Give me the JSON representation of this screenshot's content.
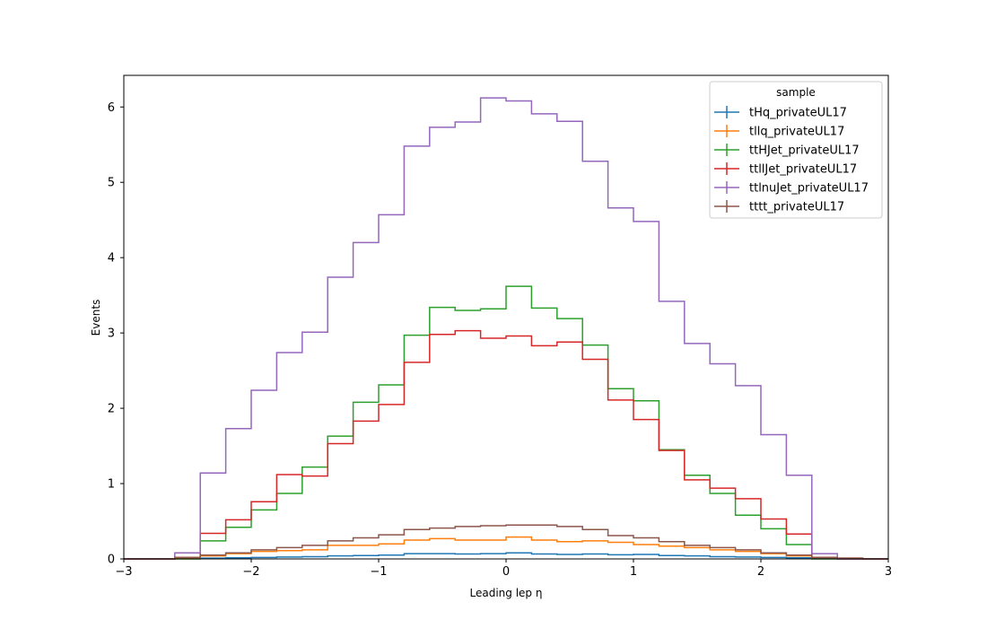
{
  "chart_data": {
    "type": "histogram-step",
    "title": "",
    "xlabel": "Leading lep η",
    "ylabel": "Events",
    "xlim": [
      -3,
      3
    ],
    "ylim": [
      0,
      6.42
    ],
    "xticks": [
      -3,
      -2,
      -1,
      0,
      1,
      2,
      3
    ],
    "xtick_labels": [
      "−3",
      "−2",
      "−1",
      "0",
      "1",
      "2",
      "3"
    ],
    "yticks": [
      0,
      1,
      2,
      3,
      4,
      5,
      6
    ],
    "ytick_labels": [
      "0",
      "1",
      "2",
      "3",
      "4",
      "5",
      "6"
    ],
    "grid": false,
    "legend_placement": "top-right",
    "legend_title": "sample",
    "bin_edges": [
      -3.0,
      -2.8,
      -2.6,
      -2.4,
      -2.2,
      -2.0,
      -1.8,
      -1.6,
      -1.4,
      -1.2,
      -1.0,
      -0.8,
      -0.6,
      -0.4,
      -0.2,
      0.0,
      0.2,
      0.4,
      0.6,
      0.8,
      1.0,
      1.2,
      1.4,
      1.6,
      1.8,
      2.0,
      2.2,
      2.4,
      2.6,
      2.8,
      3.0
    ],
    "series": [
      {
        "name": "tHq_privateUL17",
        "color": "#1f77b4",
        "values": [
          0,
          0,
          0.004,
          0.01,
          0.015,
          0.02,
          0.025,
          0.03,
          0.04,
          0.045,
          0.05,
          0.07,
          0.07,
          0.065,
          0.07,
          0.08,
          0.065,
          0.06,
          0.065,
          0.055,
          0.06,
          0.045,
          0.04,
          0.03,
          0.025,
          0.02,
          0.015,
          0.01,
          0.004,
          0
        ]
      },
      {
        "name": "tllq_privateUL17",
        "color": "#ff7f0e",
        "values": [
          0,
          0,
          0.01,
          0.04,
          0.07,
          0.1,
          0.11,
          0.12,
          0.18,
          0.18,
          0.2,
          0.25,
          0.27,
          0.25,
          0.25,
          0.29,
          0.25,
          0.23,
          0.24,
          0.22,
          0.19,
          0.17,
          0.15,
          0.12,
          0.1,
          0.07,
          0.04,
          0.02,
          0.01,
          0
        ]
      },
      {
        "name": "ttHJet_privateUL17",
        "color": "#2ca02c",
        "values": [
          0,
          0,
          0,
          0.24,
          0.42,
          0.65,
          0.87,
          1.22,
          1.63,
          2.08,
          2.31,
          2.97,
          3.34,
          3.3,
          3.32,
          3.62,
          3.33,
          3.19,
          2.84,
          2.26,
          2.1,
          1.45,
          1.11,
          0.87,
          0.58,
          0.4,
          0.19,
          0,
          0,
          0
        ]
      },
      {
        "name": "ttllJet_privateUL17",
        "color": "#d62728",
        "values": [
          0,
          0,
          0.02,
          0.34,
          0.52,
          0.76,
          1.12,
          1.1,
          1.53,
          1.83,
          2.05,
          2.61,
          2.98,
          3.03,
          2.93,
          2.96,
          2.83,
          2.88,
          2.65,
          2.11,
          1.85,
          1.44,
          1.05,
          0.94,
          0.8,
          0.53,
          0.33,
          0.02,
          0,
          0
        ]
      },
      {
        "name": "ttlnuJet_privateUL17",
        "color": "#9467bd",
        "values": [
          0,
          0,
          0.08,
          1.14,
          1.73,
          2.24,
          2.74,
          3.01,
          3.74,
          4.2,
          4.57,
          5.48,
          5.73,
          5.8,
          6.12,
          6.08,
          5.91,
          5.81,
          5.28,
          4.66,
          4.48,
          3.42,
          2.86,
          2.59,
          2.3,
          1.65,
          1.11,
          0.07,
          0,
          0
        ]
      },
      {
        "name": "tttt_privateUL17",
        "color": "#8c564b",
        "values": [
          0,
          0,
          0.02,
          0.05,
          0.08,
          0.12,
          0.15,
          0.18,
          0.24,
          0.28,
          0.32,
          0.39,
          0.41,
          0.43,
          0.44,
          0.45,
          0.45,
          0.43,
          0.39,
          0.31,
          0.28,
          0.23,
          0.18,
          0.15,
          0.12,
          0.08,
          0.05,
          0.02,
          0.01,
          0
        ]
      }
    ]
  }
}
